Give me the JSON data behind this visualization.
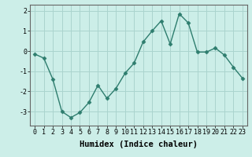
{
  "title": "",
  "xlabel": "Humidex (Indice chaleur)",
  "ylabel": "",
  "x": [
    0,
    1,
    2,
    3,
    4,
    5,
    6,
    7,
    8,
    9,
    10,
    11,
    12,
    13,
    14,
    15,
    16,
    17,
    18,
    19,
    20,
    21,
    22,
    23
  ],
  "y": [
    -0.15,
    -0.35,
    -1.4,
    -3.0,
    -3.3,
    -3.05,
    -2.55,
    -1.7,
    -2.35,
    -1.85,
    -1.1,
    -0.6,
    0.45,
    1.0,
    1.5,
    0.35,
    1.85,
    1.4,
    -0.05,
    -0.05,
    0.15,
    -0.2,
    -0.8,
    -1.35
  ],
  "line_color": "#2e7d6e",
  "marker": "D",
  "marker_size": 2.5,
  "bg_color": "#cceee8",
  "grid_color": "#aad4ce",
  "ylim": [
    -3.7,
    2.3
  ],
  "yticks": [
    -3,
    -2,
    -1,
    0,
    1,
    2
  ],
  "xticks": [
    0,
    1,
    2,
    3,
    4,
    5,
    6,
    7,
    8,
    9,
    10,
    11,
    12,
    13,
    14,
    15,
    16,
    17,
    18,
    19,
    20,
    21,
    22,
    23
  ],
  "tick_fontsize": 6,
  "xlabel_fontsize": 7.5
}
